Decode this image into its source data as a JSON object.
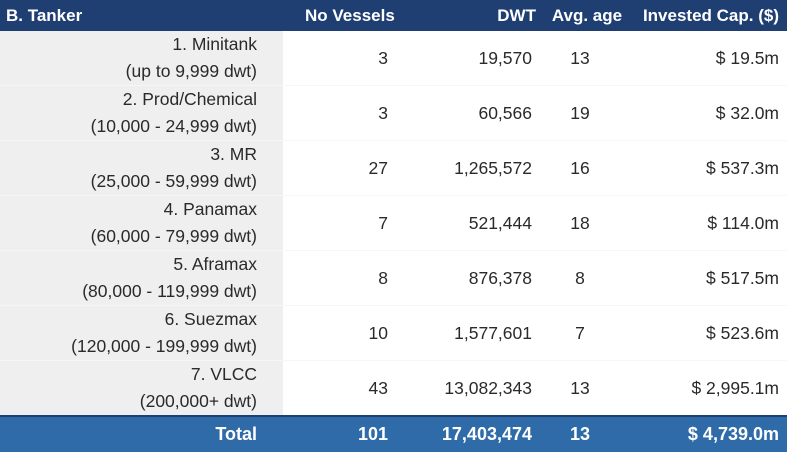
{
  "header": {
    "name": "B. Tanker",
    "vessels": "No Vessels",
    "dwt": "DWT",
    "age": "Avg. age",
    "cap": "Invested Cap. ($)"
  },
  "rows": [
    {
      "name": "1. Minitank",
      "range": "(up to 9,999 dwt)",
      "vessels": "3",
      "dwt": "19,570",
      "age": "13",
      "cap": "$ 19.5m"
    },
    {
      "name": "2. Prod/Chemical",
      "range": "(10,000 - 24,999 dwt)",
      "vessels": "3",
      "dwt": "60,566",
      "age": "19",
      "cap": "$ 32.0m"
    },
    {
      "name": "3. MR",
      "range": "(25,000 - 59,999 dwt)",
      "vessels": "27",
      "dwt": "1,265,572",
      "age": "16",
      "cap": "$ 537.3m"
    },
    {
      "name": "4. Panamax",
      "range": "(60,000 - 79,999 dwt)",
      "vessels": "7",
      "dwt": "521,444",
      "age": "18",
      "cap": "$ 114.0m"
    },
    {
      "name": "5. Aframax",
      "range": "(80,000 - 119,999 dwt)",
      "vessels": "8",
      "dwt": "876,378",
      "age": "8",
      "cap": "$ 517.5m"
    },
    {
      "name": "6. Suezmax",
      "range": "(120,000 - 199,999 dwt)",
      "vessels": "10",
      "dwt": "1,577,601",
      "age": "7",
      "cap": "$ 523.6m"
    },
    {
      "name": "7. VLCC",
      "range": "(200,000+ dwt)",
      "vessels": "43",
      "dwt": "13,082,343",
      "age": "13",
      "cap": "$ 2,995.1m"
    }
  ],
  "total": {
    "name": "Total",
    "vessels": "101",
    "dwt": "17,403,474",
    "age": "13",
    "cap": "$ 4,739.0m"
  },
  "colors": {
    "header_bg": "#1f3f73",
    "total_bg": "#2e6ba8",
    "name_col_bg": "#efefef"
  }
}
